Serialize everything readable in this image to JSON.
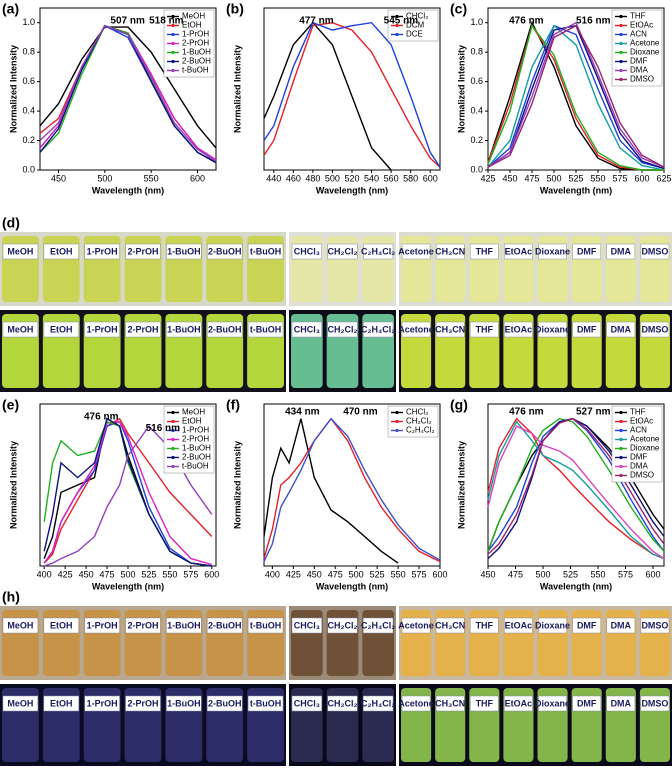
{
  "chart_data": [
    {
      "type": "line",
      "panel": "(a)",
      "x_label": "Wavelength (nm)",
      "y_label": "Normalized Intensity",
      "annotations": [
        "507 nm",
        "518 nm"
      ],
      "legend": "upper right",
      "xlim": [
        430,
        620
      ],
      "ylim": [
        0,
        1.1
      ],
      "xticks": [
        450,
        500,
        550,
        600
      ],
      "yticks": [
        {
          "value": 0,
          "label": "0.0"
        },
        {
          "value": 0.2,
          "label": "0.2"
        },
        {
          "value": 0.4,
          "label": "0.4"
        },
        {
          "value": 0.6,
          "label": "0.6"
        },
        {
          "value": 0.8,
          "label": "0.8"
        },
        {
          "value": 1,
          "label": "1.0"
        }
      ],
      "x": [
        430,
        450,
        475,
        500,
        525,
        550,
        575,
        600,
        620
      ],
      "series": [
        {
          "name": "MeOH",
          "color": "#000000",
          "values": [
            0.3,
            0.45,
            0.75,
            0.97,
            0.97,
            0.8,
            0.55,
            0.3,
            0.15
          ]
        },
        {
          "name": "EtOH",
          "color": "#e8202a",
          "values": [
            0.25,
            0.35,
            0.7,
            0.98,
            0.92,
            0.65,
            0.35,
            0.15,
            0.05
          ]
        },
        {
          "name": "1-PrOH",
          "color": "#2040e0",
          "values": [
            0.15,
            0.3,
            0.68,
            0.98,
            0.9,
            0.6,
            0.3,
            0.12,
            0.05
          ]
        },
        {
          "name": "2-PrOH",
          "color": "#e020c0",
          "values": [
            0.15,
            0.3,
            0.7,
            0.98,
            0.93,
            0.65,
            0.35,
            0.15,
            0.07
          ]
        },
        {
          "name": "1-BuOH",
          "color": "#20b020",
          "values": [
            0.12,
            0.25,
            0.65,
            0.98,
            0.93,
            0.62,
            0.3,
            0.12,
            0.05
          ]
        },
        {
          "name": "2-BuOH",
          "color": "#101080",
          "values": [
            0.12,
            0.28,
            0.68,
            0.98,
            0.92,
            0.6,
            0.3,
            0.12,
            0.05
          ]
        },
        {
          "name": "t-BuOH",
          "color": "#9040c0",
          "values": [
            0.2,
            0.32,
            0.7,
            0.98,
            0.92,
            0.63,
            0.32,
            0.14,
            0.06
          ]
        }
      ]
    },
    {
      "type": "line",
      "panel": "(b)",
      "x_label": "Wavelength (nm)",
      "y_label": "Normalized Intensity",
      "annotations": [
        "477 nm",
        "545 nm"
      ],
      "legend": "upper right",
      "xlim": [
        430,
        610
      ],
      "ylim": [
        0,
        1.1
      ],
      "xticks": [
        440,
        460,
        480,
        500,
        520,
        540,
        560,
        580,
        600
      ],
      "x": [
        430,
        440,
        460,
        480,
        500,
        520,
        540,
        560,
        580,
        600,
        610
      ],
      "series": [
        {
          "name": "CHCl₃",
          "color": "#000000",
          "values": [
            0.35,
            0.5,
            0.85,
            1.0,
            0.85,
            0.5,
            0.15,
            0.0,
            null,
            null,
            null
          ]
        },
        {
          "name": "DCM",
          "color": "#e8202a",
          "values": [
            0.1,
            0.2,
            0.6,
            0.98,
            1.0,
            0.95,
            0.8,
            0.55,
            0.3,
            0.08,
            0.02
          ]
        },
        {
          "name": "DCE",
          "color": "#2040e0",
          "values": [
            0.2,
            0.3,
            0.7,
            1.0,
            0.95,
            0.98,
            1.0,
            0.85,
            0.5,
            0.12,
            0.02
          ]
        }
      ]
    },
    {
      "type": "line",
      "panel": "(c)",
      "x_label": "Wavelength (nm)",
      "y_label": "Normalized Intensity",
      "annotations": [
        "476 nm",
        "516 nm"
      ],
      "legend": "upper right",
      "xlim": [
        425,
        625
      ],
      "ylim": [
        0,
        1.1
      ],
      "xticks": [
        425,
        450,
        475,
        500,
        525,
        550,
        575,
        600,
        625
      ],
      "yticks": [
        {
          "value": 0,
          "label": "0.0"
        },
        {
          "value": 0.2,
          "label": "0.2"
        },
        {
          "value": 0.4,
          "label": "0.4"
        },
        {
          "value": 0.6,
          "label": "0.6"
        },
        {
          "value": 0.8,
          "label": "0.8"
        },
        {
          "value": 1,
          "label": "1.0"
        }
      ],
      "x": [
        425,
        450,
        475,
        500,
        525,
        550,
        575,
        600,
        625
      ],
      "series": [
        {
          "name": "THF",
          "color": "#000000",
          "values": [
            0.05,
            0.5,
            1.0,
            0.7,
            0.3,
            0.08,
            0.01,
            0,
            0
          ]
        },
        {
          "name": "EtOAc",
          "color": "#e8202a",
          "values": [
            0.05,
            0.45,
            0.98,
            0.75,
            0.35,
            0.1,
            0.02,
            0,
            0
          ]
        },
        {
          "name": "ACN",
          "color": "#2040e0",
          "values": [
            0.02,
            0.15,
            0.6,
            0.98,
            0.92,
            0.55,
            0.2,
            0.05,
            0.01
          ]
        },
        {
          "name": "Acetone",
          "color": "#10a0a0",
          "values": [
            0.02,
            0.2,
            0.7,
            0.98,
            0.85,
            0.45,
            0.15,
            0.03,
            0
          ]
        },
        {
          "name": "Dioxane",
          "color": "#20b020",
          "values": [
            0.04,
            0.4,
            0.98,
            0.78,
            0.38,
            0.12,
            0.03,
            0,
            0
          ]
        },
        {
          "name": "DMF",
          "color": "#101080",
          "values": [
            0.02,
            0.12,
            0.55,
            0.95,
            0.98,
            0.62,
            0.25,
            0.06,
            0.01
          ]
        },
        {
          "name": "DMA",
          "color": "#9040c0",
          "values": [
            0.02,
            0.12,
            0.5,
            0.92,
            1.0,
            0.65,
            0.28,
            0.08,
            0.02
          ]
        },
        {
          "name": "DMSO",
          "color": "#a02070",
          "values": [
            0.02,
            0.1,
            0.45,
            0.9,
            0.98,
            0.7,
            0.32,
            0.1,
            0.02
          ]
        }
      ]
    },
    {
      "type": "line",
      "panel": "(e)",
      "x_label": "Wavelength (nm)",
      "y_label": "Normalized Intensity",
      "annotations": [
        "476 nm",
        "516 nm"
      ],
      "legend": "upper right",
      "xlim": [
        395,
        605
      ],
      "ylim": [
        0,
        1.1
      ],
      "xticks": [
        400,
        425,
        450,
        475,
        500,
        525,
        550,
        575,
        600
      ],
      "x": [
        400,
        410,
        420,
        440,
        460,
        475,
        490,
        500,
        525,
        550,
        575,
        600
      ],
      "series": [
        {
          "name": "MeOH",
          "color": "#000000",
          "values": [
            0.05,
            0.2,
            0.5,
            0.55,
            0.6,
            1.0,
            0.95,
            0.75,
            0.35,
            0.1,
            0.02,
            0
          ]
        },
        {
          "name": "EtOH",
          "color": "#e8202a",
          "values": [
            0.02,
            0.08,
            0.25,
            0.45,
            0.65,
            0.95,
            1.0,
            0.9,
            0.7,
            0.5,
            0.35,
            0.2
          ]
        },
        {
          "name": "1-PrOH",
          "color": "#2040e0",
          "values": [
            0.02,
            0.1,
            0.3,
            0.5,
            0.65,
            0.95,
            0.98,
            0.85,
            0.4,
            0.12,
            0.02,
            0
          ]
        },
        {
          "name": "2-PrOH",
          "color": "#e020c0",
          "values": [
            0.02,
            0.1,
            0.3,
            0.5,
            0.68,
            0.97,
            0.98,
            0.88,
            0.5,
            0.2,
            0.05,
            0.01
          ]
        },
        {
          "name": "1-BuOH",
          "color": "#20b020",
          "values": [
            0.3,
            0.7,
            0.85,
            0.75,
            0.78,
            0.98,
            0.95,
            0.7,
            0.35,
            0.1,
            0.02,
            0
          ]
        },
        {
          "name": "2-BuOH",
          "color": "#101080",
          "values": [
            0.1,
            0.35,
            0.7,
            0.6,
            0.7,
            1.0,
            0.95,
            0.72,
            0.35,
            0.1,
            0.02,
            0
          ]
        },
        {
          "name": "t-BuOH",
          "color": "#9040c0",
          "values": [
            0,
            0.02,
            0.05,
            0.1,
            0.2,
            0.4,
            0.55,
            0.75,
            0.95,
            0.8,
            0.55,
            0.35
          ]
        }
      ]
    },
    {
      "type": "line",
      "panel": "(f)",
      "x_label": "Wavelength (nm)",
      "y_label": "Normalized Intensity",
      "annotations": [
        "434 nm",
        "470 nm"
      ],
      "legend": "upper right",
      "xlim": [
        390,
        600
      ],
      "ylim": [
        0,
        1.1
      ],
      "xticks": [
        400,
        425,
        450,
        475,
        500,
        525,
        550,
        575,
        600
      ],
      "x": [
        390,
        400,
        410,
        420,
        434,
        450,
        470,
        490,
        510,
        530,
        550,
        575,
        600
      ],
      "series": [
        {
          "name": "CHCl₃",
          "color": "#000000",
          "values": [
            0.2,
            0.6,
            0.8,
            0.7,
            1.0,
            0.6,
            0.38,
            0.3,
            0.2,
            0.1,
            0.02,
            null,
            null
          ]
        },
        {
          "name": "CH₂Cl₂",
          "color": "#e8202a",
          "values": [
            0.05,
            0.25,
            0.55,
            0.6,
            0.7,
            0.85,
            1.0,
            0.85,
            0.6,
            0.4,
            0.25,
            0.1,
            0.03
          ]
        },
        {
          "name": "C₂H₄Cl₂",
          "color": "#4050d0",
          "values": [
            0.03,
            0.15,
            0.4,
            0.5,
            0.65,
            0.85,
            1.0,
            0.88,
            0.65,
            0.45,
            0.28,
            0.12,
            0.04
          ]
        }
      ]
    },
    {
      "type": "line",
      "panel": "(g)",
      "x_label": "Wavelength (nm)",
      "y_label": "Normalized Intensity",
      "annotations": [
        "476 nm",
        "527 nm"
      ],
      "legend": "upper right",
      "xlim": [
        450,
        610
      ],
      "ylim": [
        0,
        1.1
      ],
      "xticks": [
        450,
        475,
        500,
        525,
        550,
        575,
        600
      ],
      "x": [
        450,
        460,
        476,
        490,
        500,
        515,
        527,
        540,
        560,
        580,
        600,
        610
      ],
      "series": [
        {
          "name": "THF",
          "color": "#000000",
          "values": [
            0.1,
            0.3,
            0.55,
            0.75,
            0.85,
            0.98,
            1.0,
            0.95,
            0.8,
            0.6,
            0.35,
            0.25
          ]
        },
        {
          "name": "EtOAc",
          "color": "#e8202a",
          "values": [
            0.5,
            0.8,
            1.0,
            0.9,
            0.75,
            0.65,
            0.55,
            0.45,
            0.3,
            0.18,
            0.08,
            0.05
          ]
        },
        {
          "name": "ACN",
          "color": "#2040e0",
          "values": [
            0.1,
            0.2,
            0.4,
            0.7,
            0.88,
            0.98,
            1.0,
            0.92,
            0.72,
            0.45,
            0.2,
            0.1
          ]
        },
        {
          "name": "Acetone",
          "color": "#10a0a0",
          "values": [
            0.45,
            0.75,
            0.98,
            0.85,
            0.75,
            0.7,
            0.65,
            0.55,
            0.38,
            0.2,
            0.08,
            0.05
          ]
        },
        {
          "name": "Dioxane",
          "color": "#20b020",
          "values": [
            0.1,
            0.3,
            0.55,
            0.8,
            0.92,
            1.0,
            0.98,
            0.88,
            0.65,
            0.4,
            0.18,
            0.1
          ]
        },
        {
          "name": "DMF",
          "color": "#101080",
          "values": [
            0.05,
            0.12,
            0.3,
            0.6,
            0.85,
            0.98,
            1.0,
            0.95,
            0.78,
            0.55,
            0.3,
            0.2
          ]
        },
        {
          "name": "DMA",
          "color": "#e040c0",
          "values": [
            0.4,
            0.7,
            0.95,
            0.9,
            0.82,
            0.78,
            0.72,
            0.6,
            0.42,
            0.25,
            0.1,
            0.05
          ]
        },
        {
          "name": "DMSO",
          "color": "#a02070",
          "values": [
            0.08,
            0.15,
            0.35,
            0.62,
            0.85,
            0.97,
            1.0,
            0.93,
            0.75,
            0.5,
            0.25,
            0.15
          ]
        }
      ]
    }
  ],
  "photos": [
    {
      "panel": "(d)",
      "rows": [
        {
          "groups": [
            {
              "background": "#d8d8c8",
              "color": "#c8d448",
              "labels": [
                "MeOH",
                "EtOH",
                "1-PrOH",
                "2-PrOH",
                "1-BuOH",
                "2-BuOH",
                "t-BuOH"
              ]
            },
            {
              "background": "#e0e0d8",
              "color": "#e4e8a0",
              "labels": [
                "CHCl₃",
                "CH₂Cl₂",
                "C₂H₄Cl₂"
              ]
            },
            {
              "background": "#dcdcd0",
              "color": "#e4e890",
              "labels": [
                "Acetone",
                "CH₃CN",
                "THF",
                "EtOAc",
                "Dioxane",
                "DMF",
                "DMA",
                "DMSO"
              ]
            }
          ]
        },
        {
          "groups": [
            {
              "background": "#12101a",
              "color": "#c4ec40",
              "labels": [
                "MeOH",
                "EtOH",
                "1-PrOH",
                "2-PrOH",
                "1-BuOH",
                "2-BuOH",
                "t-BuOH"
              ]
            },
            {
              "background": "#0c0c18",
              "color": "#70d0a0",
              "labels": [
                "CHCl₃",
                "CH₂Cl₂",
                "C₂H₄Cl₂"
              ]
            },
            {
              "background": "#101018",
              "color": "#d8f040",
              "labels": [
                "Acetone",
                "CH₃CN",
                "THF",
                "EtOAc",
                "Dioxane",
                "DMF",
                "DMA",
                "DMSO"
              ]
            }
          ]
        }
      ]
    },
    {
      "panel": "(h)",
      "rows": [
        {
          "groups": [
            {
              "background": "#b8a890",
              "color": "#c89040",
              "labels": [
                "MeOH",
                "EtOH",
                "1-PrOH",
                "2-PrOH",
                "1-BuOH",
                "2-BuOH",
                "t-BuOH"
              ]
            },
            {
              "background": "#9a8a78",
              "color": "#6a4a30",
              "labels": [
                "CHCl₃",
                "CH₂Cl₂",
                "C₂H₄Cl₂"
              ]
            },
            {
              "background": "#c8b8a0",
              "color": "#e8b040",
              "labels": [
                "Acetone",
                "CH₃CN",
                "THF",
                "EtOAc",
                "Dioxane",
                "DMF",
                "DMA",
                "DMSO"
              ]
            }
          ]
        },
        {
          "groups": [
            {
              "background": "#0a0a20",
              "color": "#303070",
              "labels": [
                "MeOH",
                "EtOH",
                "1-PrOH",
                "2-PrOH",
                "1-BuOH",
                "2-BuOH",
                "t-BuOH"
              ]
            },
            {
              "background": "#08081a",
              "color": "#303058",
              "labels": [
                "CHCl₃",
                "CH₂Cl₂",
                "C₂H₄Cl₂"
              ]
            },
            {
              "background": "#0a0a1a",
              "color": "#90c850",
              "labels": [
                "Acetone",
                "CH₃CN",
                "THF",
                "EtOAc",
                "Dioxane",
                "DMF",
                "DMA",
                "DMSO"
              ]
            }
          ]
        }
      ]
    }
  ]
}
